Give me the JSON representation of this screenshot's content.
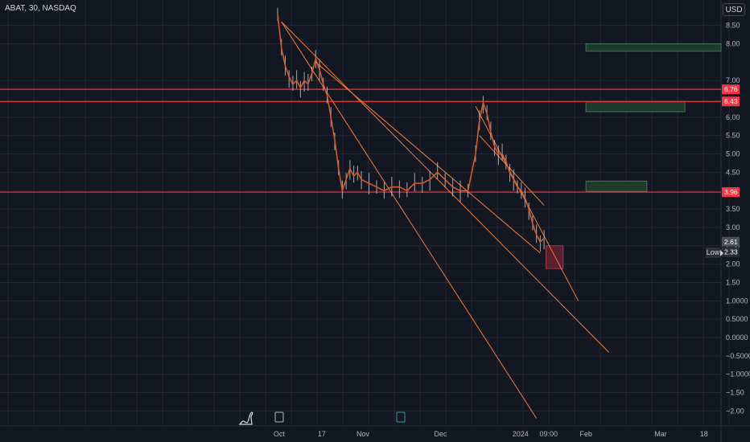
{
  "header": {
    "symbol_title": "ABAT, 30, NASDAQ",
    "currency": "USD"
  },
  "low_label": "Low",
  "colors": {
    "background": "#131722",
    "grid": "#242733",
    "axis_text": "#b2b5be",
    "resistance_line": "#f23645",
    "trendline": "#f57c35",
    "price_line": "#d35a2b",
    "candle": "#c8cbd3",
    "zone_green": "#1e3a2d",
    "zone_red": "#5b2030"
  },
  "chart_data": {
    "type": "line",
    "y_axis": {
      "ticks": [
        "8.00",
        "7.00",
        "6.00",
        "5.50",
        "5.00",
        "4.50",
        "4.00",
        "3.50",
        "3.00",
        "2.50",
        "2.00",
        "1.50",
        "1.0000",
        "0.5000",
        "0.0000",
        "−0.5000",
        "−1.0000",
        "−1.50",
        "−2.00"
      ],
      "top_tick": "8.50",
      "tick_values": [
        8.5,
        8,
        7,
        6,
        5.5,
        5,
        4.5,
        4,
        3.5,
        3,
        2.5,
        2,
        1.5,
        1,
        0.5,
        0,
        -0.5,
        -1,
        -1.5,
        -2
      ]
    },
    "x_axis": {
      "labels": [
        {
          "text": "Oct",
          "t": 0.4
        },
        {
          "text": "17",
          "t": 11.6
        },
        {
          "text": "Nov",
          "t": 22.4
        },
        {
          "text": "Dec",
          "t": 42.8
        },
        {
          "text": "2024",
          "t": 63.8
        },
        {
          "text": "09:00",
          "t": 71.2
        },
        {
          "text": "Feb",
          "t": 81.0
        },
        {
          "text": "Mar",
          "t": 100.6
        },
        {
          "text": "18",
          "t": 112.0
        }
      ]
    },
    "price_labels": [
      {
        "text": "6.76",
        "value": 6.76,
        "color": "#f23645"
      },
      {
        "text": "6.43",
        "value": 6.43,
        "color": "#f23645"
      },
      {
        "text": "3.96",
        "value": 3.96,
        "color": "#f23645"
      },
      {
        "text": "2.61",
        "value": 2.61,
        "color": "#4a4e5a"
      },
      {
        "text": "2.33",
        "value": 2.33,
        "color": "#2a2e39"
      }
    ],
    "horizontal_lines": [
      6.76,
      6.43,
      3.96
    ],
    "price_series": [
      [
        0,
        8.8
      ],
      [
        1,
        7.9
      ],
      [
        2,
        7.4
      ],
      [
        3,
        7.1
      ],
      [
        4,
        6.9
      ],
      [
        5,
        7.0
      ],
      [
        6,
        6.8
      ],
      [
        7,
        7.0
      ],
      [
        8,
        6.9
      ],
      [
        9,
        7.2
      ],
      [
        10,
        7.6
      ],
      [
        11,
        7.3
      ],
      [
        12,
        6.9
      ],
      [
        13,
        6.6
      ],
      [
        14,
        6.0
      ],
      [
        15,
        5.4
      ],
      [
        16,
        4.6
      ],
      [
        17,
        4.0
      ],
      [
        18,
        4.3
      ],
      [
        19,
        4.6
      ],
      [
        20,
        4.4
      ],
      [
        21,
        4.5
      ],
      [
        22,
        4.3
      ],
      [
        24,
        4.2
      ],
      [
        26,
        4.1
      ],
      [
        28,
        4.0
      ],
      [
        30,
        4.1
      ],
      [
        32,
        4.1
      ],
      [
        34,
        4.0
      ],
      [
        36,
        4.2
      ],
      [
        38,
        4.2
      ],
      [
        40,
        4.3
      ],
      [
        42,
        4.5
      ],
      [
        44,
        4.3
      ],
      [
        46,
        4.1
      ],
      [
        48,
        4.0
      ],
      [
        50,
        4.0
      ],
      [
        52,
        5.0
      ],
      [
        53,
        5.9
      ],
      [
        54,
        6.4
      ],
      [
        55,
        6.1
      ],
      [
        56,
        5.6
      ],
      [
        57,
        5.2
      ],
      [
        58,
        5.0
      ],
      [
        59,
        5.0
      ],
      [
        60,
        4.8
      ],
      [
        61,
        4.5
      ],
      [
        62,
        4.3
      ],
      [
        63,
        4.1
      ],
      [
        64,
        4.0
      ],
      [
        65,
        3.8
      ],
      [
        66,
        3.5
      ],
      [
        67,
        3.1
      ],
      [
        68,
        2.8
      ],
      [
        69,
        2.6
      ],
      [
        70,
        2.7
      ]
    ],
    "trendlines": [
      {
        "t1": 1,
        "v1": 8.6,
        "t2": 68,
        "v2": -2.2
      },
      {
        "t1": 1,
        "v1": 8.6,
        "t2": 87,
        "v2": -0.4
      },
      {
        "t1": 10,
        "v1": 7.5,
        "t2": 69,
        "v2": 2.3
      },
      {
        "t1": 53,
        "v1": 5.5,
        "t2": 70,
        "v2": 3.6
      },
      {
        "t1": 52,
        "v1": 6.3,
        "t2": 79,
        "v2": 1.0
      }
    ],
    "zones": [
      {
        "t1": 81,
        "t2": 127,
        "v1": 7.8,
        "v2": 8.0,
        "color": "green"
      },
      {
        "t1": 81,
        "t2": 107,
        "v1": 6.15,
        "v2": 6.42,
        "color": "green"
      },
      {
        "t1": 81,
        "t2": 97,
        "v1": 3.98,
        "v2": 4.26,
        "color": "green"
      },
      {
        "t1": 70.5,
        "t2": 75,
        "v1": 1.88,
        "v2": 2.5,
        "color": "red"
      }
    ]
  }
}
